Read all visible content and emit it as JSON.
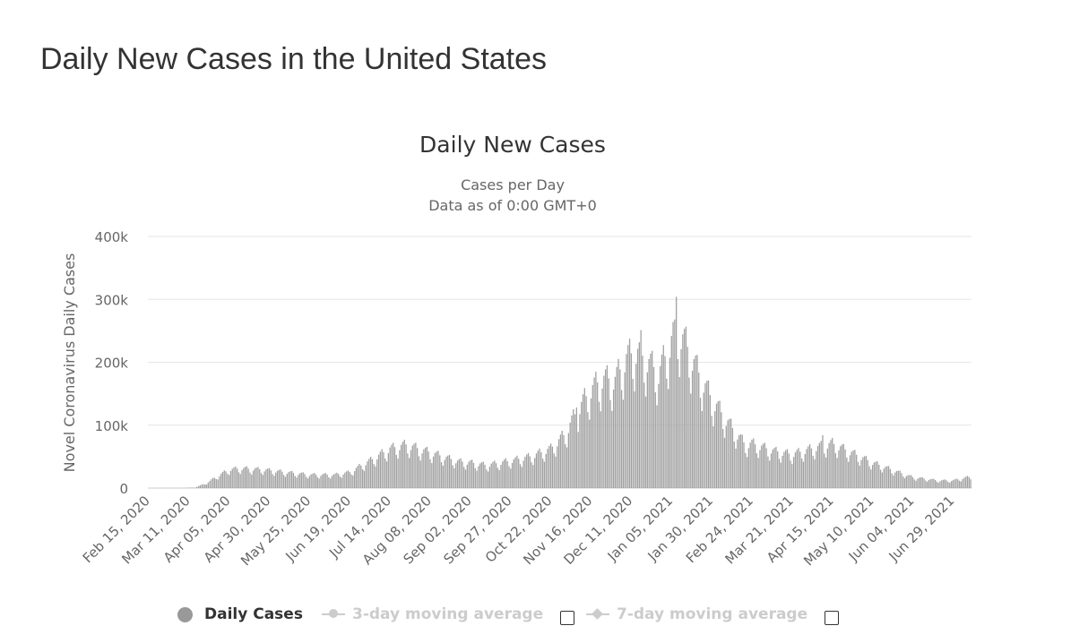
{
  "page": {
    "title": "Daily New Cases in the United States"
  },
  "chart_data": {
    "type": "bar",
    "title": "Daily New Cases",
    "subtitle_lines": [
      "Cases per Day",
      "Data as of 0:00 GMT+0"
    ],
    "xlabel": "",
    "ylabel": "Novel Coronavirus Daily Cases",
    "ylim": [
      0,
      400000
    ],
    "yticks": [
      0,
      100000,
      200000,
      300000,
      400000
    ],
    "ytick_labels": [
      "0",
      "100k",
      "200k",
      "300k",
      "400k"
    ],
    "x_start": "2020-02-15",
    "x_tick_labels": [
      "Feb 15, 2020",
      "Mar 11, 2020",
      "Apr 05, 2020",
      "Apr 30, 2020",
      "May 25, 2020",
      "Jun 19, 2020",
      "Jul 14, 2020",
      "Aug 08, 2020",
      "Sep 02, 2020",
      "Sep 27, 2020",
      "Oct 22, 2020",
      "Nov 16, 2020",
      "Dec 11, 2020",
      "Jan 05, 2021",
      "Jan 30, 2021",
      "Feb 24, 2021",
      "Mar 21, 2021",
      "Apr 15, 2021",
      "May 10, 2021",
      "Jun 04, 2021",
      "Jun 29, 2021"
    ],
    "grid": true,
    "bar_color": "#a0a0a0",
    "series": [
      {
        "name": "Daily Cases",
        "weekly_cycle": [
          0.82,
          0.72,
          0.92,
          1.04,
          1.1,
          1.14,
          1.02
        ],
        "trend_points": [
          [
            "2020-02-15",
            0
          ],
          [
            "2020-03-01",
            20
          ],
          [
            "2020-03-08",
            100
          ],
          [
            "2020-03-15",
            1000
          ],
          [
            "2020-03-22",
            8000
          ],
          [
            "2020-03-29",
            19000
          ],
          [
            "2020-04-05",
            29000
          ],
          [
            "2020-04-12",
            31000
          ],
          [
            "2020-04-26",
            29000
          ],
          [
            "2020-05-10",
            25000
          ],
          [
            "2020-05-25",
            21000
          ],
          [
            "2020-06-10",
            21000
          ],
          [
            "2020-06-19",
            25000
          ],
          [
            "2020-06-28",
            38000
          ],
          [
            "2020-07-05",
            48000
          ],
          [
            "2020-07-14",
            62000
          ],
          [
            "2020-07-24",
            68000
          ],
          [
            "2020-08-08",
            56000
          ],
          [
            "2020-08-25",
            42000
          ],
          [
            "2020-09-02",
            40000
          ],
          [
            "2020-09-12",
            36000
          ],
          [
            "2020-09-27",
            43000
          ],
          [
            "2020-10-10",
            50000
          ],
          [
            "2020-10-22",
            62000
          ],
          [
            "2020-10-31",
            85000
          ],
          [
            "2020-11-07",
            120000
          ],
          [
            "2020-11-16",
            155000
          ],
          [
            "2020-11-23",
            172000
          ],
          [
            "2020-12-01",
            170000
          ],
          [
            "2020-12-08",
            205000
          ],
          [
            "2020-12-14",
            215000
          ],
          [
            "2020-12-21",
            200000
          ],
          [
            "2020-12-28",
            180000
          ],
          [
            "2021-01-04",
            225000
          ],
          [
            "2021-01-08",
            255000
          ],
          [
            "2021-01-15",
            220000
          ],
          [
            "2021-01-22",
            180000
          ],
          [
            "2021-01-30",
            140000
          ],
          [
            "2021-02-10",
            100000
          ],
          [
            "2021-02-20",
            68000
          ],
          [
            "2021-02-24",
            70000
          ],
          [
            "2021-03-10",
            58000
          ],
          [
            "2021-03-21",
            53000
          ],
          [
            "2021-04-05",
            64000
          ],
          [
            "2021-04-15",
            70000
          ],
          [
            "2021-04-25",
            58000
          ],
          [
            "2021-05-10",
            40000
          ],
          [
            "2021-05-25",
            26000
          ],
          [
            "2021-06-04",
            17000
          ],
          [
            "2021-06-20",
            12000
          ],
          [
            "2021-06-29",
            12000
          ],
          [
            "2021-07-08",
            17000
          ]
        ],
        "spikes": [
          [
            "2020-11-07",
            128000
          ],
          [
            "2021-01-08",
            304000
          ],
          [
            "2021-01-07",
            268000
          ],
          [
            "2020-12-17",
            251000
          ],
          [
            "2021-04-09",
            84000
          ]
        ]
      }
    ],
    "legend": [
      {
        "label": "Daily Cases",
        "marker": "circle",
        "color": "#999999",
        "active": true
      },
      {
        "label": "3-day moving average",
        "marker": "circle",
        "color": "#cccccc",
        "active": false
      },
      {
        "label": "7-day moving average",
        "marker": "diamond",
        "color": "#cccccc",
        "active": false
      }
    ]
  },
  "colors": {
    "text": "#333333",
    "grid": "#e6e6e6",
    "axis_label": "#666666",
    "inactive": "#cccccc"
  }
}
